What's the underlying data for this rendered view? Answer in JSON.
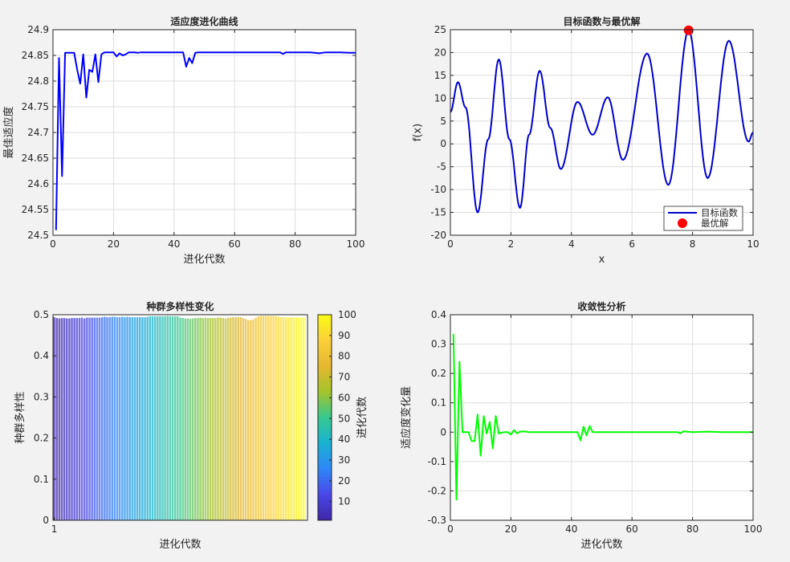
{
  "chart_data": [
    {
      "type": "line",
      "title": "适应度进化曲线",
      "xlabel": "进化代数",
      "ylabel": "最佳适应度",
      "xlim": [
        0,
        100
      ],
      "ylim": [
        24.5,
        24.9
      ],
      "xticks": [
        0,
        20,
        40,
        60,
        80,
        100
      ],
      "yticks": [
        24.5,
        24.55,
        24.6,
        24.65,
        24.7,
        24.75,
        24.8,
        24.85,
        24.9
      ],
      "grid": true,
      "series": [
        {
          "color": "#0000ff",
          "x": [
            1,
            2,
            3,
            4,
            5,
            6,
            7,
            8,
            9,
            10,
            11,
            12,
            13,
            14,
            15,
            16,
            17,
            18,
            19,
            20,
            21,
            22,
            23,
            24,
            25,
            26,
            27,
            28,
            29,
            30,
            35,
            40,
            41,
            42,
            43,
            44,
            45,
            46,
            47,
            48,
            50,
            55,
            60,
            65,
            70,
            75,
            76,
            77,
            78,
            80,
            85,
            88,
            90,
            95,
            98,
            100
          ],
          "values": [
            24.51,
            24.845,
            24.615,
            24.855,
            24.855,
            24.855,
            24.855,
            24.822,
            24.795,
            24.852,
            24.768,
            24.822,
            24.818,
            24.852,
            24.798,
            24.852,
            24.856,
            24.856,
            24.856,
            24.856,
            24.848,
            24.854,
            24.85,
            24.852,
            24.856,
            24.856,
            24.856,
            24.855,
            24.856,
            24.856,
            24.856,
            24.856,
            24.856,
            24.856,
            24.856,
            24.828,
            24.845,
            24.835,
            24.855,
            24.856,
            24.856,
            24.856,
            24.856,
            24.856,
            24.856,
            24.856,
            24.853,
            24.856,
            24.856,
            24.856,
            24.856,
            24.854,
            24.856,
            24.856,
            24.855,
            24.855
          ]
        }
      ]
    },
    {
      "type": "line",
      "title": "目标函数与最优解",
      "xlabel": "x",
      "ylabel": "f(x)",
      "xlim": [
        0,
        10
      ],
      "ylim": [
        -20,
        25
      ],
      "xticks": [
        0,
        2,
        4,
        6,
        8,
        10
      ],
      "yticks": [
        -20,
        -15,
        -10,
        -5,
        0,
        5,
        10,
        15,
        20,
        25
      ],
      "grid": true,
      "legend": "bottom-right",
      "series": [
        {
          "name": "目标函数",
          "color": "#0000cc",
          "x": [
            0,
            0.25,
            0.5,
            0.9,
            1.25,
            1.6,
            1.95,
            2.3,
            2.6,
            2.95,
            3.3,
            3.65,
            4.2,
            4.7,
            5.2,
            5.7,
            6.5,
            7.2,
            7.87,
            8.5,
            9.2,
            9.85,
            10
          ],
          "values": [
            7,
            13.5,
            8,
            -15,
            1,
            18.5,
            1,
            -14,
            2,
            16,
            3.5,
            -5.5,
            9.2,
            2,
            10.2,
            -3.5,
            19.8,
            -9,
            24.9,
            -7.5,
            22.6,
            0.5,
            2.5
          ]
        },
        {
          "name": "最优解",
          "color": "#ff0000",
          "type": "scatter",
          "x": [
            7.87
          ],
          "values": [
            24.86
          ]
        }
      ]
    },
    {
      "type": "bar",
      "title": "种群多样性变化",
      "xlabel": "进化代数",
      "ylabel": "种群多样性",
      "xtick_labels": [
        "1"
      ],
      "ylim": [
        0,
        0.5
      ],
      "yticks": [
        0,
        0.1,
        0.2,
        0.3,
        0.4,
        0.5
      ],
      "colorbar": {
        "label": "进化代数",
        "range": [
          1,
          100
        ],
        "ticks": [
          10,
          20,
          30,
          40,
          50,
          60,
          70,
          80,
          90,
          100
        ],
        "colormap": [
          "#3e26a8",
          "#4a47e8",
          "#2e87f7",
          "#19b2d2",
          "#36c990",
          "#a3c42a",
          "#e6b72f",
          "#fcd03a",
          "#f9fb15"
        ]
      },
      "values": [
        0.494,
        0.492,
        0.491,
        0.492,
        0.492,
        0.491,
        0.491,
        0.492,
        0.492,
        0.492,
        0.492,
        0.493,
        0.491,
        0.493,
        0.493,
        0.493,
        0.493,
        0.493,
        0.493,
        0.494,
        0.495,
        0.494,
        0.494,
        0.495,
        0.495,
        0.494,
        0.494,
        0.495,
        0.494,
        0.495,
        0.494,
        0.494,
        0.494,
        0.494,
        0.494,
        0.494,
        0.494,
        0.495,
        0.496,
        0.496,
        0.496,
        0.496,
        0.496,
        0.496,
        0.496,
        0.497,
        0.496,
        0.496,
        0.496,
        0.496,
        0.493,
        0.492,
        0.491,
        0.491,
        0.49,
        0.491,
        0.492,
        0.492,
        0.493,
        0.492,
        0.493,
        0.492,
        0.492,
        0.492,
        0.492,
        0.493,
        0.493,
        0.492,
        0.491,
        0.493,
        0.493,
        0.494,
        0.494,
        0.494,
        0.494,
        0.492,
        0.49,
        0.487,
        0.487,
        0.489,
        0.493,
        0.496,
        0.497,
        0.497,
        0.497,
        0.497,
        0.497,
        0.497,
        0.496,
        0.495,
        0.494,
        0.494,
        0.494,
        0.493,
        0.494,
        0.494,
        0.493,
        0.493,
        0.493,
        0.494
      ]
    },
    {
      "type": "line",
      "title": "收敛性分析",
      "xlabel": "进化代数",
      "ylabel": "适应度变化量",
      "xlim": [
        0,
        100
      ],
      "ylim": [
        -0.3,
        0.4
      ],
      "xticks": [
        0,
        20,
        40,
        60,
        80,
        100
      ],
      "yticks": [
        -0.3,
        -0.2,
        -0.1,
        0,
        0.1,
        0.2,
        0.3,
        0.4
      ],
      "grid": true,
      "series": [
        {
          "color": "#00ff00",
          "x": [
            1,
            2,
            3,
            4,
            5,
            6,
            7,
            8,
            9,
            10,
            11,
            12,
            13,
            14,
            15,
            16,
            17,
            18,
            19,
            20,
            21,
            22,
            23,
            24,
            25,
            26,
            30,
            35,
            40,
            42,
            43,
            44,
            45,
            46,
            47,
            48,
            50,
            55,
            60,
            70,
            75,
            76,
            77,
            80,
            85,
            90,
            95,
            100
          ],
          "values": [
            0.335,
            -0.23,
            0.24,
            0,
            0,
            0,
            -0.03,
            -0.03,
            0.06,
            -0.08,
            0.055,
            -0.005,
            0.035,
            -0.055,
            0.055,
            -0.005,
            -0.001,
            0,
            0,
            -0.008,
            0.007,
            -0.004,
            0.002,
            0.003,
            0.002,
            0,
            0,
            0,
            0,
            0,
            -0.028,
            0.019,
            -0.011,
            0.021,
            0,
            0,
            0,
            0,
            0,
            0,
            0,
            -0.004,
            0.003,
            0,
            0.002,
            0,
            0,
            0
          ]
        }
      ]
    }
  ]
}
